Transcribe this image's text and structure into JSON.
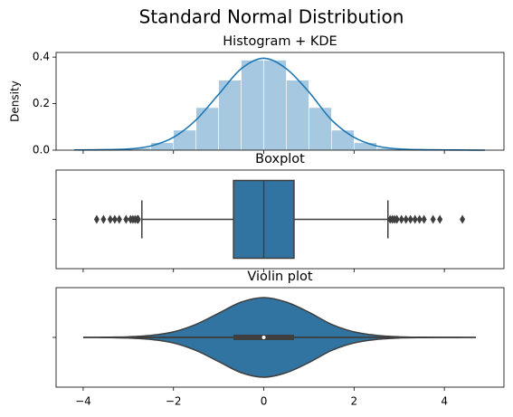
{
  "title": "Standard Normal Distribution",
  "chart_data": [
    {
      "type": "histogram",
      "title": "Histogram + KDE",
      "ylabel": "Density",
      "bins": [
        -4,
        -3.5,
        -3,
        -2.5,
        -2,
        -1.5,
        -1,
        -0.5,
        0,
        0.5,
        1,
        1.5,
        2,
        2.5,
        3,
        3.5,
        4,
        4.5
      ],
      "values": [
        0.0004,
        0.002,
        0.009,
        0.032,
        0.086,
        0.183,
        0.301,
        0.387,
        0.387,
        0.301,
        0.183,
        0.086,
        0.032,
        0.009,
        0.002,
        0.0004,
        0.0001
      ],
      "color": "#a6c8e1",
      "line": {
        "x": [
          -4.2,
          -3.5,
          -3,
          -2.5,
          -2,
          -1.5,
          -1,
          -0.5,
          0,
          0.5,
          1,
          1.5,
          2,
          2.5,
          3,
          3.5,
          4,
          4.5,
          4.9
        ],
        "values": [
          0.001,
          0.002,
          0.005,
          0.018,
          0.055,
          0.13,
          0.24,
          0.35,
          0.395,
          0.35,
          0.25,
          0.13,
          0.055,
          0.018,
          0.005,
          0.002,
          0.001,
          0.0005,
          0
        ],
        "color": "#1f77b4"
      },
      "xlim": [
        -4.6,
        5.32
      ],
      "xticks": [
        -4,
        -2,
        0,
        2,
        4
      ],
      "ylim": [
        0,
        0.42
      ],
      "yticks": [
        {
          "value": 0,
          "label": "0.0"
        },
        {
          "value": 0.2,
          "label": "0.2"
        },
        {
          "value": 0.4,
          "label": "0.4"
        }
      ]
    },
    {
      "type": "box",
      "title": "Boxplot",
      "color": "#3274a1",
      "values": {
        "whislo": -2.7,
        "q1": -0.67,
        "median": 0,
        "q3": 0.67,
        "whishi": 2.75,
        "fliers": [
          -3.7,
          -3.55,
          -3.4,
          -3.3,
          -3.2,
          -3.05,
          -2.95,
          -2.9,
          -2.85,
          -2.8,
          -2.78,
          2.8,
          2.85,
          2.9,
          2.95,
          3.05,
          3.15,
          3.25,
          3.35,
          3.45,
          3.55,
          3.75,
          3.9,
          4.4
        ]
      },
      "xlim": [
        -4.6,
        5.32
      ],
      "xticks": [
        -4,
        -2,
        0,
        2,
        4
      ]
    },
    {
      "type": "violin",
      "title": "Violin plot",
      "color": "#3274a1",
      "x": [
        -4,
        -3.5,
        -3,
        -2.5,
        -2,
        -1.5,
        -1,
        -0.5,
        0,
        0.5,
        1,
        1.5,
        2,
        2.5,
        3,
        3.5,
        4,
        4.5,
        4.7
      ],
      "values": [
        0.001,
        0.002,
        0.006,
        0.02,
        0.055,
        0.13,
        0.24,
        0.35,
        0.395,
        0.35,
        0.25,
        0.13,
        0.055,
        0.02,
        0.006,
        0.002,
        0.001,
        0.0005,
        0
      ],
      "box": {
        "whislo": -2.7,
        "q1": -0.67,
        "median": 0,
        "q3": 0.67,
        "whishi": 2.75
      },
      "xlim": [
        -4.6,
        5.32
      ],
      "xticks": [
        {
          "value": -4,
          "label": "−4"
        },
        {
          "value": -2,
          "label": "−2"
        },
        0,
        2,
        4
      ]
    }
  ]
}
